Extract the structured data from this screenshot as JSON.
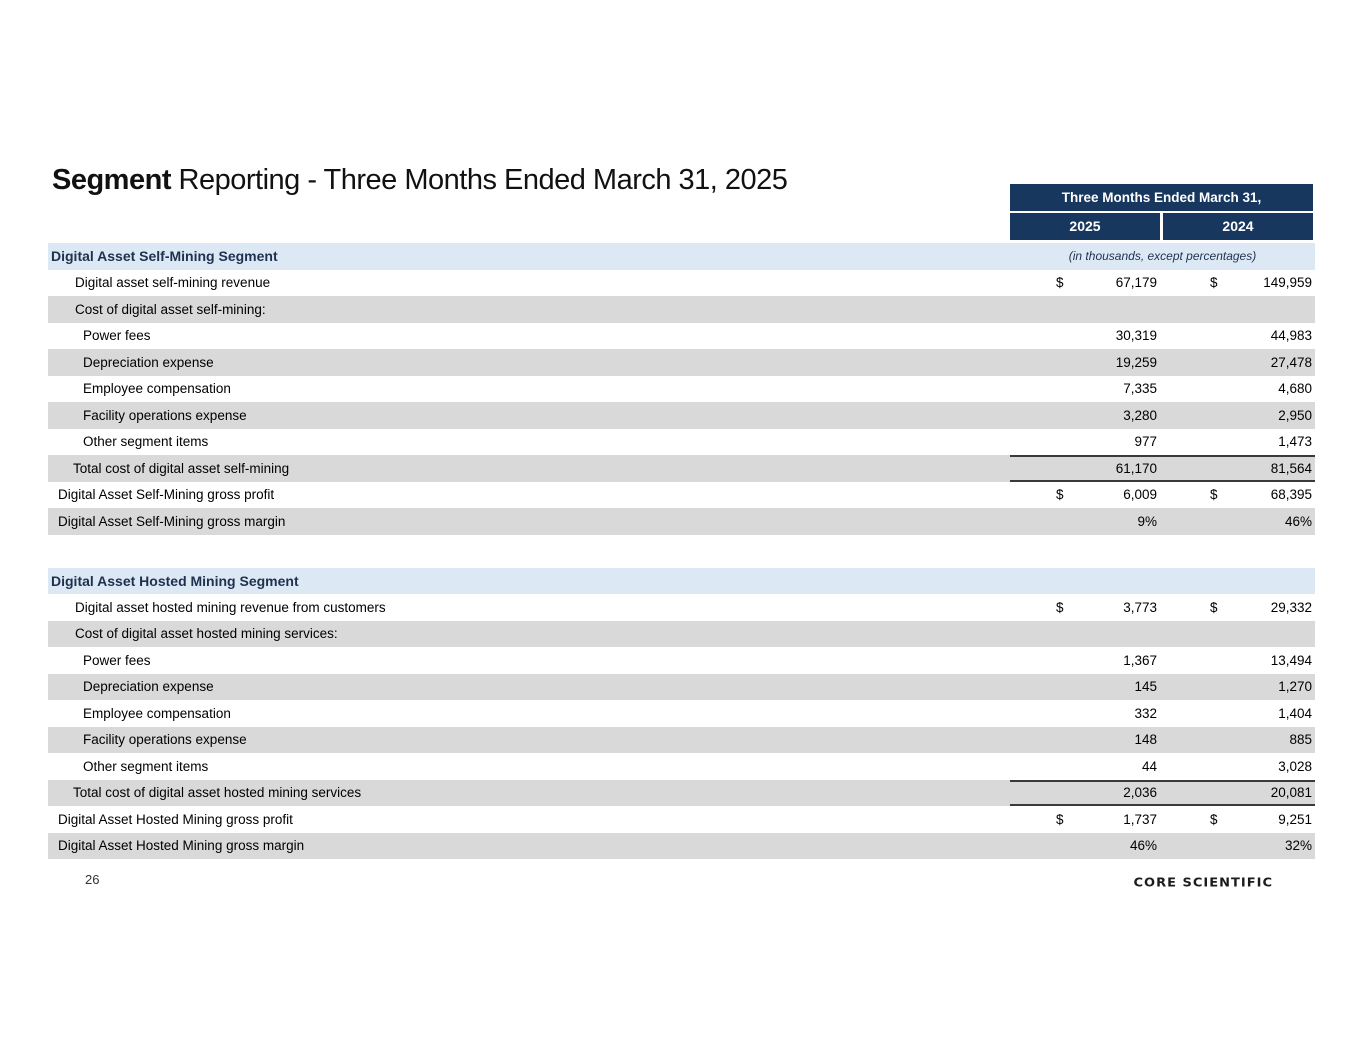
{
  "page": {
    "title_bold": "Segment",
    "title_rest": " Reporting - Three Months Ended March 31, 2025",
    "page_number": "26",
    "logo_text": "CORE SCIENTIFIC"
  },
  "colors": {
    "navy_header": "#17375E",
    "segment_band_blue": "#DCE9F5",
    "row_gray": "#D9D9D9",
    "total_border": "#3A3A3A"
  },
  "table_header": {
    "period_label": "Three Months Ended March 31,",
    "year_col_1": "2025",
    "year_col_2": "2024",
    "units_note": "(in thousands, except percentages)"
  },
  "table": {
    "sections": [
      {
        "name": "digital-asset-self-mining",
        "rows": [
          {
            "label": "Digital Asset Self-Mining Segment",
            "indent": 0,
            "bg": "blue",
            "seg": true,
            "note": "(in thousands, except percentages)"
          },
          {
            "label": "Digital asset self-mining revenue",
            "indent": 2,
            "bg": "white",
            "d1": "$",
            "v1": "67,179",
            "d2": "$",
            "v2": "149,959"
          },
          {
            "label": "Cost of digital asset self-mining:",
            "indent": 2,
            "bg": "gray"
          },
          {
            "label": "Power fees",
            "indent": 3,
            "bg": "white",
            "v1": "30,319",
            "v2": "44,983"
          },
          {
            "label": "Depreciation expense",
            "indent": 3,
            "bg": "gray",
            "v1": "19,259",
            "v2": "27,478"
          },
          {
            "label": "Employee compensation",
            "indent": 3,
            "bg": "white",
            "v1": "7,335",
            "v2": "4,680"
          },
          {
            "label": "Facility operations expense",
            "indent": 3,
            "bg": "gray",
            "v1": "3,280",
            "v2": "2,950"
          },
          {
            "label": "Other segment items",
            "indent": 3,
            "bg": "white",
            "v1": "977",
            "v2": "1,473"
          },
          {
            "label": "Total cost of digital asset self-mining",
            "indent": 4,
            "bg": "gray",
            "v1": "61,170",
            "v2": "81,564",
            "border": "both"
          },
          {
            "label": "Digital Asset Self-Mining gross profit",
            "indent": 1,
            "bg": "white",
            "d1": "$",
            "v1": "6,009",
            "d2": "$",
            "v2": "68,395"
          },
          {
            "label": "Digital Asset Self-Mining gross margin",
            "indent": 1,
            "bg": "gray",
            "v1": "9%",
            "v2": "46%"
          }
        ]
      },
      {
        "name": "digital-asset-hosted-mining",
        "rows": [
          {
            "label": "Digital Asset Hosted Mining Segment",
            "indent": 0,
            "bg": "blue",
            "seg": true
          },
          {
            "label": "Digital asset hosted mining revenue from customers",
            "indent": 2,
            "bg": "white",
            "d1": "$",
            "v1": "3,773",
            "d2": "$",
            "v2": "29,332"
          },
          {
            "label": "Cost of digital asset hosted mining services:",
            "indent": 2,
            "bg": "gray"
          },
          {
            "label": "Power fees",
            "indent": 3,
            "bg": "white",
            "v1": "1,367",
            "v2": "13,494"
          },
          {
            "label": "Depreciation expense",
            "indent": 3,
            "bg": "gray",
            "v1": "145",
            "v2": "1,270"
          },
          {
            "label": "Employee compensation",
            "indent": 3,
            "bg": "white",
            "v1": "332",
            "v2": "1,404"
          },
          {
            "label": "Facility operations expense",
            "indent": 3,
            "bg": "gray",
            "v1": "148",
            "v2": "885"
          },
          {
            "label": "Other segment items",
            "indent": 3,
            "bg": "white",
            "v1": "44",
            "v2": "3,028"
          },
          {
            "label": "Total cost of digital asset hosted mining services",
            "indent": 4,
            "bg": "gray",
            "v1": "2,036",
            "v2": "20,081",
            "border": "both"
          },
          {
            "label": "Digital Asset Hosted Mining gross profit",
            "indent": 1,
            "bg": "white",
            "d1": "$",
            "v1": "1,737",
            "d2": "$",
            "v2": "9,251"
          },
          {
            "label": "Digital Asset Hosted Mining gross margin",
            "indent": 1,
            "bg": "gray",
            "v1": "46%",
            "v2": "32%"
          }
        ]
      }
    ]
  }
}
